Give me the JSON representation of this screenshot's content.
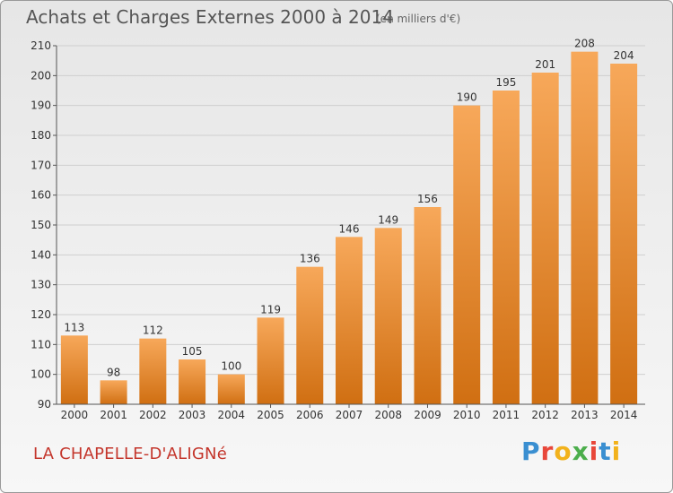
{
  "title": "Achats et Charges Externes 2000 à 2014",
  "subtitle": "(en milliers d'€)",
  "town": "LA CHAPELLE-D'ALIGNé",
  "logo": "Proxiti",
  "colors": {
    "bar_light": "#f7a85a",
    "bar_dark": "#d06f12",
    "town_text": "#c4362c"
  },
  "chart_data": {
    "type": "bar",
    "title": "Achats et Charges Externes 2000 à 2014",
    "xlabel": "",
    "ylabel": "",
    "ylim": [
      90,
      210
    ],
    "yticks": [
      90,
      100,
      110,
      120,
      130,
      140,
      150,
      160,
      170,
      180,
      190,
      200,
      210
    ],
    "grid": true,
    "categories": [
      "2000",
      "2001",
      "2002",
      "2003",
      "2004",
      "2005",
      "2006",
      "2007",
      "2008",
      "2009",
      "2010",
      "2011",
      "2012",
      "2013",
      "2014"
    ],
    "values": [
      113,
      98,
      112,
      105,
      100,
      119,
      136,
      146,
      149,
      156,
      190,
      195,
      201,
      208,
      204
    ]
  }
}
